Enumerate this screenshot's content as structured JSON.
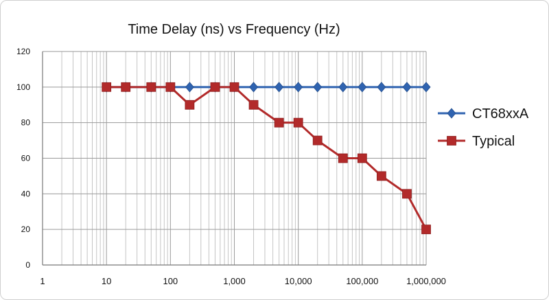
{
  "chart_data": {
    "type": "line",
    "title": "Time Delay (ns) vs Frequency (Hz)",
    "xlabel": "",
    "ylabel": "",
    "x_scale": "log",
    "xlim": [
      1,
      1000000
    ],
    "ylim": [
      0,
      120
    ],
    "grid": true,
    "legend_position": "right",
    "x_tick_labels": [
      "1",
      "10",
      "100",
      "1,000",
      "10,000",
      "100,000",
      "1,000,000"
    ],
    "y_tick_labels": [
      "0",
      "20",
      "40",
      "60",
      "80",
      "100",
      "120"
    ],
    "series": [
      {
        "name": "CT68xxA",
        "color": "#2f63b0",
        "marker": "diamond",
        "x": [
          10,
          20,
          50,
          100,
          200,
          500,
          1000,
          2000,
          5000,
          10000,
          20000,
          50000,
          100000,
          200000,
          500000,
          1000000
        ],
        "y": [
          100,
          100,
          100,
          100,
          100,
          100,
          100,
          100,
          100,
          100,
          100,
          100,
          100,
          100,
          100,
          100
        ]
      },
      {
        "name": "Typical",
        "color": "#b22a2a",
        "marker": "square",
        "x": [
          10,
          20,
          50,
          100,
          200,
          500,
          1000,
          2000,
          5000,
          10000,
          20000,
          50000,
          100000,
          200000,
          500000,
          1000000
        ],
        "y": [
          100,
          100,
          100,
          100,
          90,
          100,
          100,
          90,
          80,
          80,
          70,
          60,
          60,
          50,
          40,
          20
        ]
      }
    ]
  }
}
